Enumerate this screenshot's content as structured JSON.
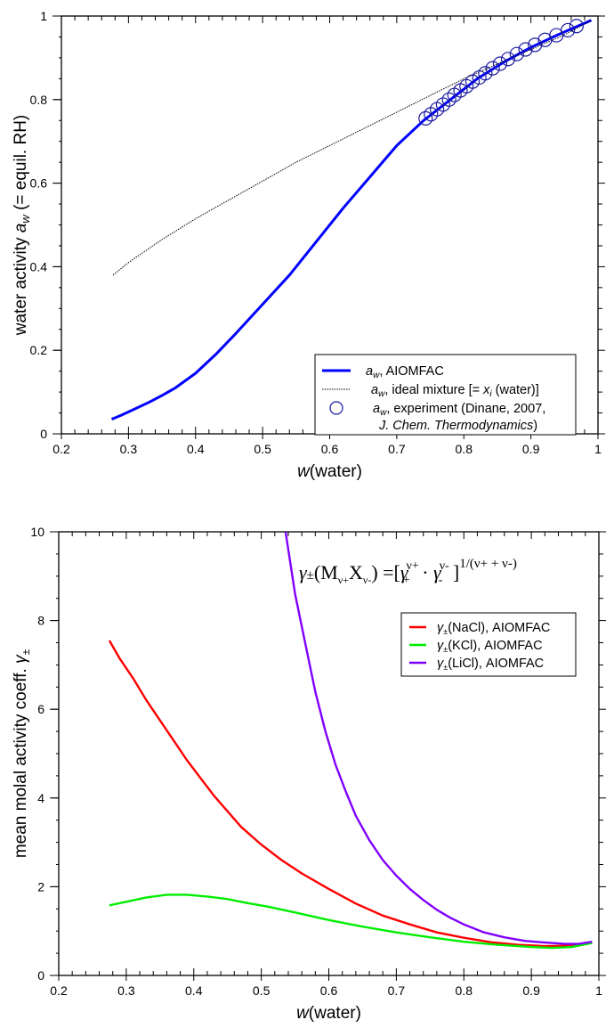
{
  "chart_data": [
    {
      "type": "line",
      "title": "",
      "xlabel_italic": "w",
      "xlabel_rest": "(water)",
      "ylabel_prefix": "water activity ",
      "ylabel_italic": "a",
      "ylabel_sub": "w",
      "ylabel_suffix": " (= equil. RH)",
      "xlim": [
        0.2,
        1.0
      ],
      "ylim": [
        0,
        1.0
      ],
      "x_ticks": [
        "0.2",
        "0.3",
        "0.4",
        "0.5",
        "0.6",
        "0.7",
        "0.8",
        "0.9",
        "1"
      ],
      "y_ticks": [
        "0",
        "0.2",
        "0.4",
        "0.6",
        "0.8",
        "1"
      ],
      "legend_position": "bottom-right",
      "series": [
        {
          "name": "aw, AIOMFAC",
          "legend": {
            "italic": "a",
            "sub": "w",
            "rest": ", AIOMFAC"
          },
          "color": "#0000ff",
          "style": "solid",
          "x": [
            0.275,
            0.29,
            0.31,
            0.33,
            0.35,
            0.37,
            0.4,
            0.43,
            0.46,
            0.5,
            0.54,
            0.58,
            0.62,
            0.66,
            0.7,
            0.74,
            0.78,
            0.82,
            0.86,
            0.9,
            0.94,
            0.99
          ],
          "y": [
            0.035,
            0.045,
            0.06,
            0.075,
            0.092,
            0.11,
            0.145,
            0.19,
            0.24,
            0.31,
            0.38,
            0.46,
            0.54,
            0.615,
            0.69,
            0.75,
            0.8,
            0.85,
            0.89,
            0.925,
            0.955,
            0.99
          ]
        },
        {
          "name": "aw, ideal mixture [= xi (water)]",
          "legend": {
            "italic": "a",
            "sub": "w",
            "mid": ", ideal mixture [= ",
            "italic2": "x",
            "sub2": "i",
            "rest": " (water)]"
          },
          "color": "#000000",
          "style": "dotted",
          "x": [
            0.277,
            0.3,
            0.35,
            0.4,
            0.45,
            0.5,
            0.55,
            0.6,
            0.65,
            0.7,
            0.75,
            0.8,
            0.85,
            0.9,
            0.95,
            0.99
          ],
          "y": [
            0.38,
            0.41,
            0.465,
            0.515,
            0.56,
            0.605,
            0.65,
            0.69,
            0.73,
            0.77,
            0.81,
            0.85,
            0.885,
            0.92,
            0.955,
            0.99
          ]
        },
        {
          "name": "aw, experiment (Dinane, 2007, J. Chem. Thermodynamics)",
          "legend": {
            "italic": "a",
            "sub": "w",
            "rest": ", experiment (Dinane, 2007,",
            "line2_italic": "J. Chem. Thermodynamics",
            "line2_rest": ")"
          },
          "color": "#1a1a9e",
          "style": "markers",
          "x": [
            0.743,
            0.751,
            0.76,
            0.769,
            0.778,
            0.786,
            0.795,
            0.804,
            0.813,
            0.823,
            0.832,
            0.843,
            0.854,
            0.866,
            0.879,
            0.892,
            0.906,
            0.921,
            0.938,
            0.955,
            0.968
          ],
          "y": [
            0.755,
            0.765,
            0.777,
            0.788,
            0.8,
            0.811,
            0.822,
            0.832,
            0.843,
            0.853,
            0.863,
            0.875,
            0.886,
            0.897,
            0.909,
            0.92,
            0.931,
            0.943,
            0.954,
            0.966,
            0.976
          ]
        }
      ]
    },
    {
      "type": "line",
      "title": "",
      "xlabel_italic": "w",
      "xlabel_rest": "(water)",
      "ylabel_text": "mean molal activity coeff. ",
      "ylabel_gamma": "γ",
      "ylabel_sub": "±",
      "xlim": [
        0.2,
        1.0
      ],
      "ylim": [
        0,
        10
      ],
      "x_ticks": [
        "0.2",
        "0.3",
        "0.4",
        "0.5",
        "0.6",
        "0.7",
        "0.8",
        "0.9",
        "1"
      ],
      "y_ticks": [
        "0",
        "2",
        "4",
        "6",
        "8",
        "10"
      ],
      "legend_position": "top-right",
      "annotation": {
        "lhs_gamma": "γ",
        "lhs_pm": "±",
        "lhs_open": "(M",
        "lhs_sub1": "ν+",
        "lhs_X": "X",
        "lhs_sub2": "ν-",
        "lhs_close": ")",
        "eq": " =[",
        "g1": "γ",
        "g1_sub": "+",
        "g1_sup": "ν+",
        "dot": " · ",
        "g2": "γ",
        "g2_sub": "-",
        "g2_sup": "ν-",
        "rb": " ]",
        "exp": "1/(ν+ + ν-)"
      },
      "series": [
        {
          "name": "γ±(NaCl), AIOMFAC",
          "legend": {
            "gamma": "γ",
            "sub": "±",
            "rest": "(NaCl), AIOMFAC"
          },
          "color": "#ff0000",
          "x": [
            0.275,
            0.29,
            0.31,
            0.33,
            0.35,
            0.37,
            0.39,
            0.41,
            0.43,
            0.45,
            0.47,
            0.5,
            0.53,
            0.56,
            0.6,
            0.64,
            0.68,
            0.72,
            0.76,
            0.8,
            0.84,
            0.88,
            0.92,
            0.96,
            0.99
          ],
          "y": [
            7.55,
            7.15,
            6.7,
            6.2,
            5.75,
            5.3,
            4.85,
            4.45,
            4.05,
            3.7,
            3.35,
            2.95,
            2.6,
            2.3,
            1.95,
            1.62,
            1.35,
            1.15,
            0.97,
            0.85,
            0.75,
            0.69,
            0.66,
            0.67,
            0.74
          ]
        },
        {
          "name": "γ±(KCl), AIOMFAC",
          "legend": {
            "gamma": "γ",
            "sub": "±",
            "rest": "(KCl), AIOMFAC"
          },
          "color": "#00ee00",
          "x": [
            0.275,
            0.3,
            0.33,
            0.36,
            0.39,
            0.42,
            0.45,
            0.48,
            0.51,
            0.55,
            0.6,
            0.65,
            0.7,
            0.75,
            0.8,
            0.85,
            0.9,
            0.93,
            0.96,
            0.99
          ],
          "y": [
            1.58,
            1.66,
            1.76,
            1.82,
            1.82,
            1.78,
            1.72,
            1.63,
            1.55,
            1.42,
            1.25,
            1.1,
            0.97,
            0.86,
            0.76,
            0.69,
            0.64,
            0.62,
            0.64,
            0.73
          ]
        },
        {
          "name": "γ±(LiCl), AIOMFAC",
          "legend": {
            "gamma": "γ",
            "sub": "±",
            "rest": "(LiCl), AIOMFAC"
          },
          "color": "#8000ff",
          "x": [
            0.536,
            0.55,
            0.565,
            0.58,
            0.595,
            0.61,
            0.625,
            0.64,
            0.66,
            0.68,
            0.7,
            0.72,
            0.74,
            0.76,
            0.78,
            0.8,
            0.83,
            0.86,
            0.89,
            0.92,
            0.95,
            0.97,
            0.99
          ],
          "y": [
            10.0,
            8.6,
            7.5,
            6.4,
            5.5,
            4.75,
            4.15,
            3.6,
            3.05,
            2.6,
            2.25,
            1.95,
            1.7,
            1.48,
            1.3,
            1.15,
            0.97,
            0.86,
            0.78,
            0.74,
            0.71,
            0.71,
            0.76
          ]
        }
      ]
    }
  ]
}
